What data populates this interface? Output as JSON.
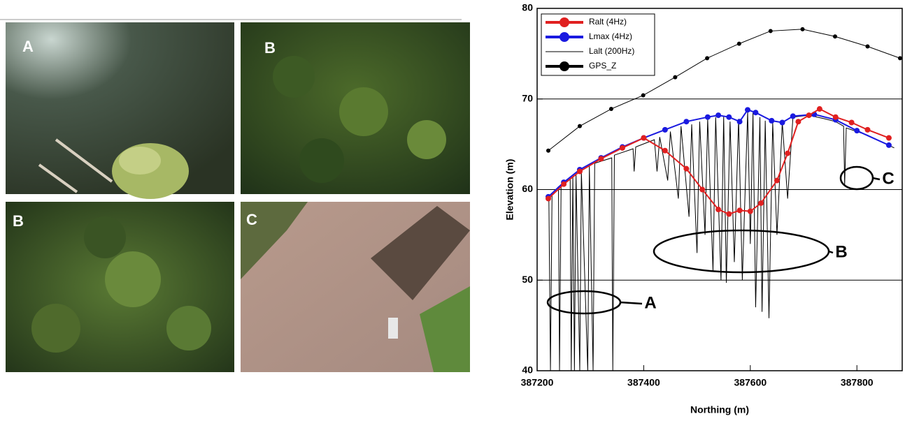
{
  "panels": {
    "labels": [
      "A",
      "B",
      "B",
      "C"
    ]
  },
  "chart_data": {
    "type": "line",
    "xlabel": "Northing (m)",
    "ylabel": "Elevation (m)",
    "xlim": [
      387200,
      387885
    ],
    "ylim": [
      40,
      80
    ],
    "xticks": [
      387200,
      387400,
      387600,
      387800
    ],
    "yticks": [
      40,
      50,
      60,
      70,
      80
    ],
    "grid": true,
    "legend": "upper left",
    "annotations": [
      "A",
      "B",
      "C"
    ],
    "series": [
      {
        "name": "Ralt (4Hz)",
        "color": "#e02020",
        "marker": true,
        "linewidth": 2,
        "x": [
          387221,
          387250,
          387280,
          387320,
          387360,
          387400,
          387440,
          387480,
          387510,
          387540,
          387560,
          387580,
          387600,
          387620,
          387650,
          387670,
          387690,
          387710,
          387730,
          387760,
          387790,
          387820,
          387860
        ],
        "values": [
          59.0,
          60.6,
          62.0,
          63.4,
          64.6,
          65.7,
          64.3,
          62.3,
          60.0,
          57.8,
          57.3,
          57.7,
          57.6,
          58.5,
          61.0,
          64.0,
          67.5,
          68.2,
          68.9,
          68.0,
          67.4,
          66.6,
          65.7
        ]
      },
      {
        "name": "Lmax (4Hz)",
        "color": "#1a1ae0",
        "marker": true,
        "linewidth": 2,
        "x": [
          387221,
          387250,
          387280,
          387320,
          387360,
          387400,
          387440,
          387480,
          387520,
          387540,
          387560,
          387580,
          387595,
          387610,
          387640,
          387660,
          387680,
          387720,
          387760,
          387800,
          387860
        ],
        "values": [
          59.2,
          60.8,
          62.2,
          63.5,
          64.7,
          65.7,
          66.6,
          67.5,
          68.0,
          68.2,
          68.0,
          67.5,
          68.8,
          68.5,
          67.6,
          67.4,
          68.1,
          68.3,
          67.7,
          66.5,
          64.9
        ]
      },
      {
        "name": "Lalt (200Hz)",
        "color": "#000000",
        "marker": false,
        "linewidth": 1,
        "x": [
          387222,
          387225,
          387228,
          387240,
          387242,
          387245,
          387262,
          387264,
          387267,
          387270,
          387273,
          387280,
          387283,
          387295,
          387298,
          387305,
          387308,
          387340,
          387342,
          387345,
          387380,
          387382,
          387385,
          387420,
          387425,
          387430,
          387445,
          387450,
          387465,
          387470,
          387485,
          387490,
          387500,
          387505,
          387515,
          387520,
          387530,
          387535,
          387545,
          387550,
          387555,
          387562,
          387570,
          387578,
          387585,
          387595,
          387600,
          387605,
          387610,
          387618,
          387622,
          387628,
          387635,
          387642,
          387650,
          387660,
          387670,
          387680,
          387710,
          387740,
          387760,
          387775,
          387777,
          387780,
          387820,
          387870
        ],
        "values": [
          59.2,
          40,
          59.6,
          60.3,
          40,
          60.5,
          61.2,
          40,
          61.4,
          40,
          61.6,
          40,
          62,
          40,
          62.6,
          40,
          62.9,
          63.5,
          40,
          63.8,
          64.5,
          62,
          64.7,
          65.5,
          62,
          65.8,
          61,
          66.4,
          59,
          67,
          57,
          67.2,
          53,
          67.5,
          55,
          67.8,
          51,
          68,
          50,
          68.1,
          49.7,
          67.5,
          52,
          67.8,
          50,
          68.6,
          54,
          68.5,
          47,
          68,
          46.5,
          67.6,
          45.8,
          67.4,
          55,
          67.4,
          59,
          68,
          68.2,
          67.8,
          67.5,
          67,
          60.5,
          66.8,
          66,
          64.6
        ]
      },
      {
        "name": "GPS_Z",
        "color": "#000000",
        "marker": true,
        "linewidth": 1,
        "x": [
          387221,
          387280,
          387339,
          387399,
          387459,
          387519,
          387579,
          387638,
          387698,
          387759,
          387820,
          387881
        ],
        "values": [
          64.3,
          67.0,
          68.9,
          70.4,
          72.4,
          74.5,
          76.1,
          77.5,
          77.7,
          76.9,
          75.8,
          74.5
        ]
      }
    ]
  }
}
